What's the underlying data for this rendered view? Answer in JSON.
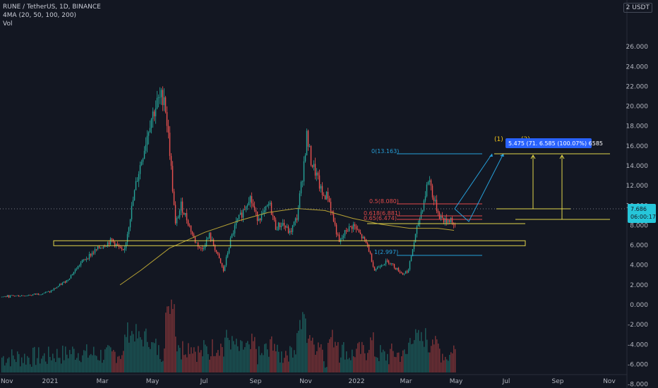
{
  "header": {
    "symbol_line": "RUNE / TetherUS, 1D, BINANCE",
    "indicator_line": "4MA (20, 50, 100, 200)",
    "volume_line": "Vol",
    "currency_badge": "2 USDT"
  },
  "colors": {
    "background": "#131722",
    "bull": "#26a69a",
    "bear": "#ef5350",
    "ma": "#b7a234",
    "zone": "#e2d44a",
    "fib": "#26a0da",
    "fib_red": "#e04a4a",
    "blue_label": "#2962ff"
  },
  "chart_data": {
    "type": "candlestick",
    "title": "RUNE / TetherUS, 1D, BINANCE",
    "ylim": [
      -9.5,
      28
    ],
    "y_ticks": [
      "26.000",
      "24.000",
      "22.000",
      "20.000",
      "18.000",
      "16.000",
      "14.000",
      "12.000",
      "10.000",
      "8.000",
      "6.000",
      "4.000",
      "2.000",
      "0.000",
      "-2.000",
      "-4.000",
      "-6.000",
      "-8.000"
    ],
    "x_ticks": [
      "Nov",
      "2021",
      "Mar",
      "May",
      "Jul",
      "Sep",
      "Nov",
      "2022",
      "Mar",
      "May",
      "Jul",
      "Sep",
      "Nov"
    ],
    "price_path": [
      [
        0,
        0.8
      ],
      [
        45,
        1.0
      ],
      [
        70,
        1.3
      ],
      [
        95,
        2.5
      ],
      [
        115,
        4.3
      ],
      [
        135,
        5.5
      ],
      [
        158,
        6.5
      ],
      [
        175,
        5.2
      ],
      [
        183,
        8.5
      ],
      [
        193,
        12.5
      ],
      [
        203,
        15.5
      ],
      [
        212,
        18.5
      ],
      [
        222,
        20.3
      ],
      [
        232,
        21.2
      ],
      [
        240,
        15.5
      ],
      [
        248,
        8.0
      ],
      [
        256,
        10.0
      ],
      [
        265,
        8.5
      ],
      [
        275,
        6.5
      ],
      [
        285,
        5.5
      ],
      [
        296,
        7.0
      ],
      [
        305,
        5.5
      ],
      [
        316,
        3.4
      ],
      [
        326,
        6.5
      ],
      [
        334,
        8.2
      ],
      [
        343,
        9.3
      ],
      [
        353,
        11.0
      ],
      [
        363,
        8.8
      ],
      [
        372,
        9.0
      ],
      [
        381,
        10.2
      ],
      [
        390,
        7.8
      ],
      [
        400,
        8.2
      ],
      [
        410,
        7.2
      ],
      [
        420,
        8.8
      ],
      [
        428,
        13.0
      ],
      [
        434,
        17.0
      ],
      [
        440,
        14.5
      ],
      [
        448,
        13.0
      ],
      [
        456,
        11.0
      ],
      [
        464,
        11.0
      ],
      [
        472,
        8.5
      ],
      [
        480,
        6.2
      ],
      [
        490,
        7.5
      ],
      [
        500,
        8.0
      ],
      [
        510,
        7.0
      ],
      [
        520,
        6.0
      ],
      [
        530,
        3.5
      ],
      [
        540,
        4.1
      ],
      [
        550,
        4.4
      ],
      [
        560,
        3.7
      ],
      [
        570,
        3.1
      ],
      [
        578,
        3.5
      ],
      [
        585,
        6.0
      ],
      [
        592,
        8.2
      ],
      [
        600,
        10.5
      ],
      [
        607,
        12.9
      ],
      [
        614,
        10.5
      ],
      [
        622,
        9.0
      ],
      [
        630,
        8.4
      ],
      [
        638,
        8.7
      ],
      [
        644,
        7.7
      ]
    ],
    "ma_line": [
      [
        170,
        2.0
      ],
      [
        200,
        3.5
      ],
      [
        240,
        5.7
      ],
      [
        290,
        7.3
      ],
      [
        340,
        8.5
      ],
      [
        380,
        9.3
      ],
      [
        420,
        9.7
      ],
      [
        460,
        9.5
      ],
      [
        500,
        8.7
      ],
      [
        540,
        8.1
      ],
      [
        580,
        7.7
      ],
      [
        620,
        7.7
      ],
      [
        643,
        7.5
      ]
    ],
    "fib_levels": [
      {
        "label": "0(13.163)",
        "value": 13.163
      },
      {
        "label": "0.5(8.080)",
        "value": 8.08
      },
      {
        "label": "0.618(6.881)",
        "value": 6.881
      },
      {
        "label": "0.65(6.474)",
        "value": 6.474
      },
      {
        "label": "1(2.997)",
        "value": 2.997
      }
    ],
    "support_zone": [
      5.95,
      6.45
    ],
    "price_label": "7.686",
    "countdown_label": "06:00:17",
    "measure_label": "5.475 (71.   6.585 (100.07%) 6585",
    "wave_labels": [
      "(1)",
      "(2)"
    ]
  }
}
